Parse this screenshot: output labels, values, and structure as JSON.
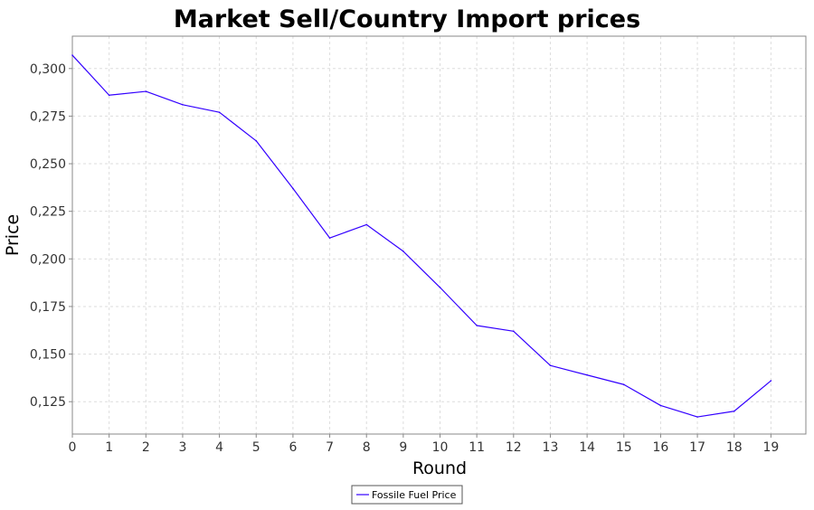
{
  "chart_data": {
    "type": "line",
    "title": "Market Sell/Country Import prices",
    "xlabel": "Round",
    "ylabel": "Price",
    "x": [
      0,
      1,
      2,
      3,
      4,
      5,
      6,
      7,
      8,
      9,
      10,
      11,
      12,
      13,
      14,
      15,
      16,
      17,
      18,
      19
    ],
    "x_ticks": [
      "0",
      "1",
      "2",
      "3",
      "4",
      "5",
      "6",
      "7",
      "8",
      "9",
      "10",
      "11",
      "12",
      "13",
      "14",
      "15",
      "16",
      "17",
      "18",
      "19"
    ],
    "xlim": [
      0,
      19.95
    ],
    "ylim": [
      0.108,
      0.317
    ],
    "y_ticks": [
      0.125,
      0.15,
      0.175,
      0.2,
      0.225,
      0.25,
      0.275,
      0.3
    ],
    "y_tick_labels": [
      "0,125",
      "0,150",
      "0,175",
      "0,200",
      "0,225",
      "0,250",
      "0,275",
      "0,300"
    ],
    "grid": true,
    "legend_position": "bottom-center",
    "series": [
      {
        "name": "Fossile Fuel Price",
        "color": "#3300ff",
        "values": [
          0.307,
          0.286,
          0.288,
          0.281,
          0.277,
          0.262,
          0.237,
          0.211,
          0.218,
          0.204,
          0.185,
          0.165,
          0.162,
          0.144,
          0.139,
          0.134,
          0.123,
          0.117,
          0.12,
          0.136
        ]
      }
    ]
  }
}
